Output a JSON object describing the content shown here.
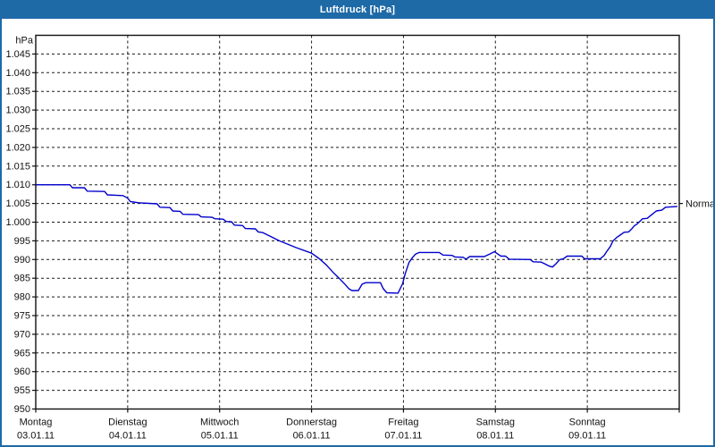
{
  "window": {
    "title": "Luftdruck [hPa]"
  },
  "colors": {
    "titlebar": "#1e6aa7",
    "window_border": "#1e6aa7",
    "grid": "#1a1a1a",
    "line": "#0000cc",
    "background": "#ffffff"
  },
  "chart_data": {
    "type": "line",
    "title": "Luftdruck [hPa]",
    "unit_label": "hPa",
    "ylim": [
      950,
      1050
    ],
    "ytick_step": 5,
    "grid": "dashed",
    "legend": "none",
    "yticks": [
      {
        "value": 950,
        "label": "950"
      },
      {
        "value": 955,
        "label": "955"
      },
      {
        "value": 960,
        "label": "960"
      },
      {
        "value": 965,
        "label": "965"
      },
      {
        "value": 970,
        "label": "970"
      },
      {
        "value": 975,
        "label": "975"
      },
      {
        "value": 980,
        "label": "980"
      },
      {
        "value": 985,
        "label": "985"
      },
      {
        "value": 990,
        "label": "990"
      },
      {
        "value": 995,
        "label": "995"
      },
      {
        "value": 1000,
        "label": "1.000"
      },
      {
        "value": 1005,
        "label": "1.005"
      },
      {
        "value": 1010,
        "label": "1.010"
      },
      {
        "value": 1015,
        "label": "1.015"
      },
      {
        "value": 1020,
        "label": "1.020"
      },
      {
        "value": 1025,
        "label": "1.025"
      },
      {
        "value": 1030,
        "label": "1.030"
      },
      {
        "value": 1035,
        "label": "1.035"
      },
      {
        "value": 1040,
        "label": "1.040"
      },
      {
        "value": 1045,
        "label": "1.045"
      }
    ],
    "x_days": [
      {
        "name": "Montag",
        "date": "03.01.11"
      },
      {
        "name": "Dienstag",
        "date": "04.01.11"
      },
      {
        "name": "Mittwoch",
        "date": "05.01.11"
      },
      {
        "name": "Donnerstag",
        "date": "06.01.11"
      },
      {
        "name": "Freitag",
        "date": "07.01.11"
      },
      {
        "name": "Samstag",
        "date": "08.01.11"
      },
      {
        "name": "Sonntag",
        "date": "09.01.11"
      }
    ],
    "annotations": [
      {
        "label": "Normal",
        "value": 1005
      }
    ],
    "series": [
      {
        "name": "Luftdruck",
        "color": "#0000cc",
        "x_unit": "days_from_start",
        "y_unit": "hPa",
        "points": [
          [
            0.0,
            1010.0
          ],
          [
            0.37,
            1010.0
          ],
          [
            0.4,
            1009.2
          ],
          [
            0.53,
            1009.2
          ],
          [
            0.56,
            1008.3
          ],
          [
            0.75,
            1008.2
          ],
          [
            0.78,
            1007.3
          ],
          [
            0.95,
            1007.1
          ],
          [
            1.0,
            1006.4
          ],
          [
            1.03,
            1005.5
          ],
          [
            1.12,
            1005.2
          ],
          [
            1.32,
            1004.9
          ],
          [
            1.35,
            1004.0
          ],
          [
            1.46,
            1003.9
          ],
          [
            1.49,
            1003.0
          ],
          [
            1.57,
            1002.9
          ],
          [
            1.6,
            1002.1
          ],
          [
            1.77,
            1002.0
          ],
          [
            1.8,
            1001.4
          ],
          [
            1.92,
            1001.3
          ],
          [
            1.95,
            1000.9
          ],
          [
            2.04,
            1000.8
          ],
          [
            2.07,
            1000.2
          ],
          [
            2.13,
            1000.1
          ],
          [
            2.16,
            999.2
          ],
          [
            2.25,
            999.1
          ],
          [
            2.28,
            998.3
          ],
          [
            2.39,
            998.2
          ],
          [
            2.42,
            997.4
          ],
          [
            2.47,
            997.2
          ],
          [
            2.56,
            996.1
          ],
          [
            2.65,
            995.0
          ],
          [
            2.83,
            993.2
          ],
          [
            3.0,
            991.7
          ],
          [
            3.08,
            990.3
          ],
          [
            3.16,
            988.6
          ],
          [
            3.24,
            986.4
          ],
          [
            3.3,
            985.0
          ],
          [
            3.37,
            983.2
          ],
          [
            3.41,
            982.1
          ],
          [
            3.44,
            981.7
          ],
          [
            3.51,
            981.7
          ],
          [
            3.55,
            983.4
          ],
          [
            3.59,
            983.8
          ],
          [
            3.75,
            983.8
          ],
          [
            3.78,
            982.2
          ],
          [
            3.82,
            981.1
          ],
          [
            3.94,
            981.0
          ],
          [
            3.99,
            983.5
          ],
          [
            4.02,
            986.3
          ],
          [
            4.06,
            989.2
          ],
          [
            4.1,
            990.6
          ],
          [
            4.13,
            991.4
          ],
          [
            4.17,
            991.9
          ],
          [
            4.39,
            991.9
          ],
          [
            4.43,
            991.2
          ],
          [
            4.53,
            991.1
          ],
          [
            4.56,
            990.7
          ],
          [
            4.65,
            990.6
          ],
          [
            4.68,
            990.1
          ],
          [
            4.72,
            990.8
          ],
          [
            4.88,
            990.8
          ],
          [
            4.95,
            991.6
          ],
          [
            4.99,
            992.1
          ],
          [
            5.03,
            991.4
          ],
          [
            5.06,
            990.9
          ],
          [
            5.11,
            990.9
          ],
          [
            5.15,
            990.1
          ],
          [
            5.38,
            990.0
          ],
          [
            5.41,
            989.4
          ],
          [
            5.5,
            989.3
          ],
          [
            5.54,
            988.8
          ],
          [
            5.58,
            988.3
          ],
          [
            5.62,
            988.0
          ],
          [
            5.66,
            988.9
          ],
          [
            5.7,
            990.0
          ],
          [
            5.74,
            990.2
          ],
          [
            5.78,
            990.9
          ],
          [
            5.94,
            990.9
          ],
          [
            5.97,
            990.2
          ],
          [
            6.14,
            990.2
          ],
          [
            6.18,
            991.0
          ],
          [
            6.21,
            992.1
          ],
          [
            6.25,
            993.5
          ],
          [
            6.28,
            995.0
          ],
          [
            6.32,
            995.9
          ],
          [
            6.35,
            996.4
          ],
          [
            6.4,
            997.3
          ],
          [
            6.45,
            997.4
          ],
          [
            6.48,
            998.1
          ],
          [
            6.51,
            999.0
          ],
          [
            6.54,
            999.5
          ],
          [
            6.57,
            1000.2
          ],
          [
            6.6,
            1000.9
          ],
          [
            6.65,
            1001.0
          ],
          [
            6.68,
            1001.6
          ],
          [
            6.71,
            1002.2
          ],
          [
            6.75,
            1003.0
          ],
          [
            6.81,
            1003.2
          ],
          [
            6.85,
            1004.0
          ],
          [
            6.98,
            1004.2
          ]
        ]
      }
    ]
  }
}
